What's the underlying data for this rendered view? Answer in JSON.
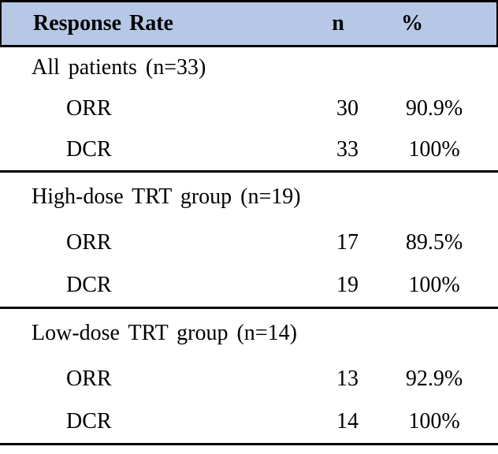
{
  "colors": {
    "header_bg": "#b6c8e6",
    "border": "#000000",
    "text": "#000000"
  },
  "table": {
    "header": {
      "label": "Response Rate",
      "n": "n",
      "pct": "%"
    },
    "sections": [
      {
        "group": "All patients (n=33)",
        "rows": [
          {
            "metric": "ORR",
            "n": "30",
            "pct": "90.9%"
          },
          {
            "metric": "DCR",
            "n": "33",
            "pct": "100%"
          }
        ]
      },
      {
        "group": "High-dose TRT group (n=19)",
        "rows": [
          {
            "metric": "ORR",
            "n": "17",
            "pct": "89.5%"
          },
          {
            "metric": "DCR",
            "n": "19",
            "pct": "100%"
          }
        ]
      },
      {
        "group": "Low-dose TRT group (n=14)",
        "rows": [
          {
            "metric": "ORR",
            "n": "13",
            "pct": "92.9%"
          },
          {
            "metric": "DCR",
            "n": "14",
            "pct": "100%"
          }
        ]
      }
    ]
  }
}
